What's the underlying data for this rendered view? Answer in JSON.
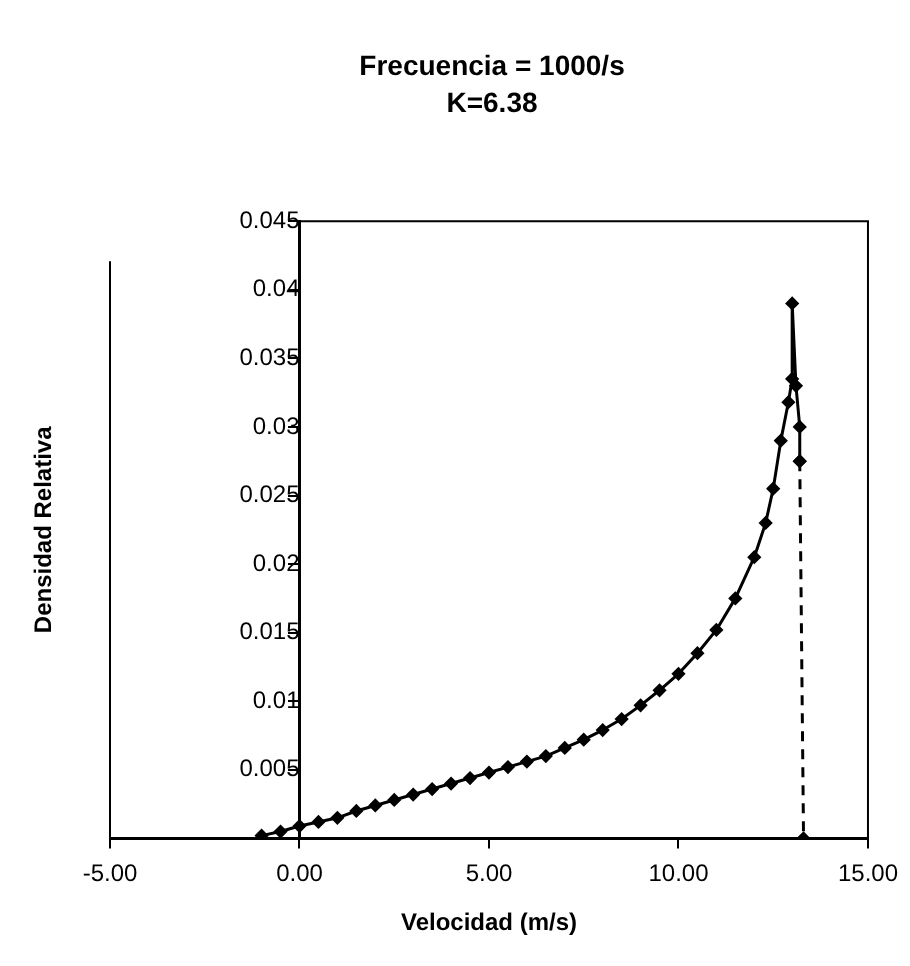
{
  "chart_data": {
    "type": "line",
    "title": "Frecuencia = 1000/s",
    "subtitle": "K=6.38",
    "xlabel": "Velocidad (m/s)",
    "ylabel": "Densidad Relativa",
    "xlim": [
      -5,
      15
    ],
    "xticks": [
      {
        "value": -5,
        "label": "-5.00"
      },
      {
        "value": 0,
        "label": "0.00"
      },
      {
        "value": 5,
        "label": "5.00"
      },
      {
        "value": 10,
        "label": "10.00"
      },
      {
        "value": 15,
        "label": "15.00"
      }
    ],
    "ylim": [
      0,
      0.045
    ],
    "yticks": [
      {
        "value": 0,
        "label": null
      },
      0.005,
      0.01,
      0.015,
      0.02,
      0.025,
      0.03,
      0.035,
      0.04,
      0.045
    ],
    "grid": false,
    "legend": false,
    "marker": "diamond",
    "series": [
      {
        "color": "#000000",
        "line_style": "solid",
        "x": [
          -1.0,
          -0.5,
          0,
          0.5,
          1,
          1.5,
          2,
          2.5,
          3,
          3.5,
          4,
          4.5,
          5,
          5.5,
          6,
          6.5,
          7,
          7.5,
          8,
          8.5,
          9,
          9.5,
          10,
          10.5,
          11,
          11.5,
          12,
          12.3,
          12.5,
          12.7,
          12.9,
          13.0,
          13.0,
          13.1,
          13.2,
          13.2
        ],
        "values": [
          0.0002,
          0.0005,
          0.0009,
          0.0012,
          0.0015,
          0.002,
          0.0024,
          0.0028,
          0.0032,
          0.0036,
          0.004,
          0.0044,
          0.0048,
          0.0052,
          0.0056,
          0.006,
          0.0066,
          0.0072,
          0.0079,
          0.0087,
          0.0097,
          0.0108,
          0.012,
          0.0135,
          0.0152,
          0.0175,
          0.0205,
          0.023,
          0.0255,
          0.029,
          0.0318,
          0.0335,
          0.039,
          0.033,
          0.03,
          0.0275
        ]
      },
      {
        "color": "#000000",
        "line_style": "dashed",
        "x": [
          13.2,
          13.3
        ],
        "values": [
          0.0275,
          0
        ]
      }
    ]
  }
}
